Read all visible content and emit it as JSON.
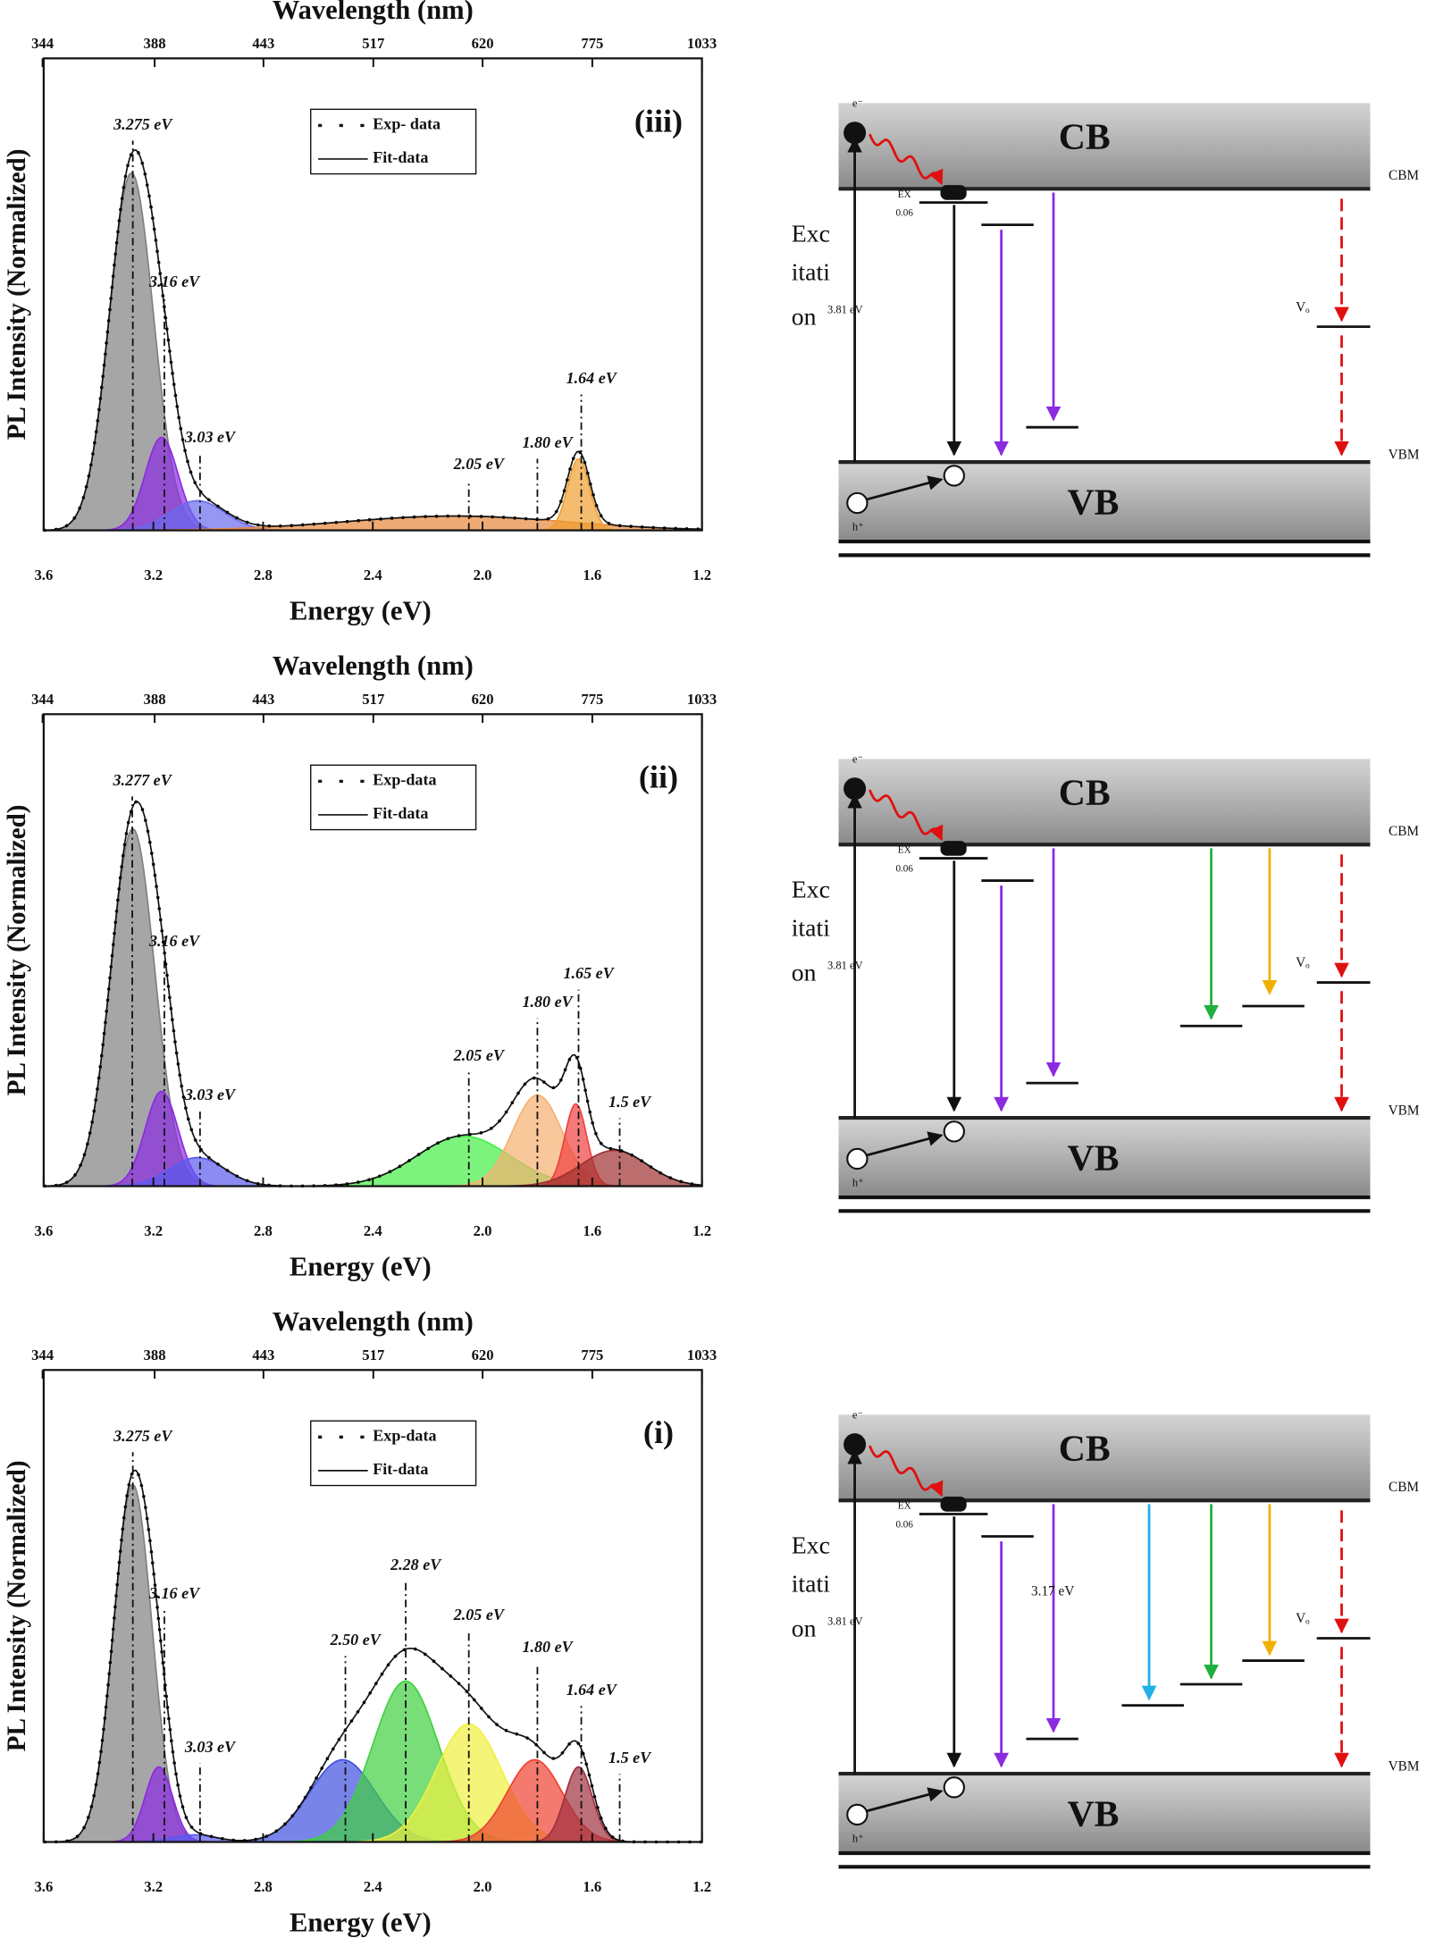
{
  "chart_data": [
    {
      "type": "area",
      "title": "Wavelength (nm)",
      "xlabel": "Energy (eV)",
      "ylabel": "PL Intensity (Normalized)",
      "panel_label": "(iii)",
      "legend_labels": [
        "Exp- data",
        "Fit-data"
      ],
      "xlim": [
        3.6,
        1.2
      ],
      "xticks": [
        3.6,
        3.2,
        2.8,
        2.4,
        {
          "value": 2,
          "label": "2.0"
        },
        1.6,
        1.2
      ],
      "x2ticks": [
        344,
        388,
        443,
        517,
        620,
        775,
        1033
      ],
      "ylim": [
        0,
        1.32
      ],
      "components": [
        {
          "center": 3.28,
          "height": 1.0,
          "width": 0.08,
          "color": "#808080"
        },
        {
          "center": 3.17,
          "height": 0.26,
          "width": 0.06,
          "color": "#8a2be2"
        },
        {
          "center": 3.04,
          "height": 0.083,
          "width": 0.1,
          "color": "#6a6aee"
        },
        {
          "center": 2.1,
          "height": 0.04,
          "width": 0.4,
          "color": "#e8883a"
        },
        {
          "center": 1.65,
          "height": 0.2,
          "width": 0.04,
          "color": "#f0a030"
        }
      ],
      "annotations": [
        {
          "label": "3.275 eV",
          "x": 3.275,
          "y": 1.09
        },
        {
          "label": "3.16 eV",
          "x": 3.16,
          "y": 0.65
        },
        {
          "label": "3.03 eV",
          "x": 3.03,
          "y": 0.215
        },
        {
          "label": "2.05 eV",
          "x": 2.05,
          "y": 0.14
        },
        {
          "label": "1.80 eV",
          "x": 1.8,
          "y": 0.2
        },
        {
          "label": "1.64 eV",
          "x": 1.64,
          "y": 0.38
        }
      ]
    },
    {
      "type": "area",
      "title": "Wavelength (nm)",
      "xlabel": "Energy (eV)",
      "ylabel": "PL Intensity (Normalized)",
      "panel_label": "(ii)",
      "legend_labels": [
        "Exp-data",
        "Fit-data"
      ],
      "xlim": [
        3.6,
        1.2
      ],
      "xticks": [
        3.6,
        3.2,
        2.8,
        2.4,
        {
          "value": 2,
          "label": "2.0"
        },
        1.6,
        1.2
      ],
      "x2ticks": [
        344,
        388,
        443,
        517,
        620,
        775,
        1033
      ],
      "ylim": [
        0,
        1.32
      ],
      "components": [
        {
          "center": 3.275,
          "height": 1.0,
          "width": 0.08,
          "color": "#808080"
        },
        {
          "center": 3.17,
          "height": 0.265,
          "width": 0.06,
          "color": "#8a2be2"
        },
        {
          "center": 3.04,
          "height": 0.08,
          "width": 0.1,
          "color": "#5a5aee"
        },
        {
          "center": 2.07,
          "height": 0.14,
          "width": 0.17,
          "color": "#44ee44"
        },
        {
          "center": 1.8,
          "height": 0.255,
          "width": 0.09,
          "color": "#f5b070"
        },
        {
          "center": 1.66,
          "height": 0.23,
          "width": 0.04,
          "color": "#f04040"
        },
        {
          "center": 1.52,
          "height": 0.1,
          "width": 0.12,
          "color": "#a03030"
        }
      ],
      "annotations": [
        {
          "label": "3.277 eV",
          "x": 3.277,
          "y": 1.09
        },
        {
          "label": "3.16 eV",
          "x": 3.16,
          "y": 0.64
        },
        {
          "label": "3.03 eV",
          "x": 3.03,
          "y": 0.21
        },
        {
          "label": "2.05 eV",
          "x": 2.05,
          "y": 0.32
        },
        {
          "label": "1.80 eV",
          "x": 1.8,
          "y": 0.47
        },
        {
          "label": "1.65 eV",
          "x": 1.65,
          "y": 0.55
        },
        {
          "label": "1.5 eV",
          "x": 1.5,
          "y": 0.19
        }
      ]
    },
    {
      "type": "area",
      "title": "Wavelength (nm)",
      "xlabel": "Energy (eV)",
      "ylabel": "PL Intensity (Normalized)",
      "panel_label": "(i)",
      "legend_labels": [
        "Exp-data",
        "Fit-data"
      ],
      "xlim": [
        3.6,
        1.2
      ],
      "xticks": [
        3.6,
        3.2,
        2.8,
        2.4,
        {
          "value": 2,
          "label": "2.0"
        },
        1.6,
        1.2
      ],
      "x2ticks": [
        344,
        388,
        443,
        517,
        620,
        775,
        1033
      ],
      "ylim": [
        0,
        1.32
      ],
      "components": [
        {
          "center": 3.275,
          "height": 1.0,
          "width": 0.07,
          "color": "#808080"
        },
        {
          "center": 3.18,
          "height": 0.21,
          "width": 0.05,
          "color": "#8a2be2"
        },
        {
          "center": 3.05,
          "height": 0.02,
          "width": 0.08,
          "color": "#5a5aee"
        },
        {
          "center": 2.51,
          "height": 0.23,
          "width": 0.12,
          "color": "#4050e0"
        },
        {
          "center": 2.28,
          "height": 0.45,
          "width": 0.12,
          "color": "#40d040"
        },
        {
          "center": 2.05,
          "height": 0.33,
          "width": 0.12,
          "color": "#f0f040"
        },
        {
          "center": 1.81,
          "height": 0.23,
          "width": 0.1,
          "color": "#f04030"
        },
        {
          "center": 1.65,
          "height": 0.21,
          "width": 0.05,
          "color": "#a03040"
        }
      ],
      "annotations": [
        {
          "label": "3.275 eV",
          "x": 3.275,
          "y": 1.09
        },
        {
          "label": "3.16 eV",
          "x": 3.16,
          "y": 0.65
        },
        {
          "label": "3.03 eV",
          "x": 3.03,
          "y": 0.22
        },
        {
          "label": "2.50 eV",
          "x": 2.5,
          "y": 0.52
        },
        {
          "label": "2.28 eV",
          "x": 2.28,
          "y": 0.73
        },
        {
          "label": "2.05 eV",
          "x": 2.05,
          "y": 0.59
        },
        {
          "label": "1.80 eV",
          "x": 1.8,
          "y": 0.5
        },
        {
          "label": "1.64 eV",
          "x": 1.64,
          "y": 0.38
        },
        {
          "label": "1.5 eV",
          "x": 1.5,
          "y": 0.19
        }
      ]
    }
  ],
  "diagrams": [
    {
      "cb": "CB",
      "vb": "VB",
      "cbm": "CBM",
      "vbm": "VBM",
      "electron": "e⁻",
      "hole": "h⁺",
      "exciton": [
        "EX",
        "0.06"
      ],
      "excitation": [
        "Exc",
        "itati",
        "on"
      ],
      "excitation_energy": "3.81 eV",
      "defect": "Vₒ"
    },
    {
      "cb": "CB",
      "vb": "VB",
      "cbm": "CBM",
      "vbm": "VBM",
      "electron": "e⁻",
      "hole": "h⁺",
      "exciton": [
        "EX",
        "0.06"
      ],
      "excitation": [
        "Exc",
        "itati",
        "on"
      ],
      "excitation_energy": "3.81 eV",
      "defect": "Vₒ"
    },
    {
      "cb": "CB",
      "vb": "VB",
      "cbm": "CBM",
      "vbm": "VBM",
      "electron": "e⁻",
      "hole": "h⁺",
      "exciton": [
        "EX",
        "0.06"
      ],
      "excitation": [
        "Exc",
        "itati",
        "on"
      ],
      "excitation_energy": "3.81 eV",
      "defect": "Vₒ",
      "level_energy": "3.17 eV"
    }
  ]
}
